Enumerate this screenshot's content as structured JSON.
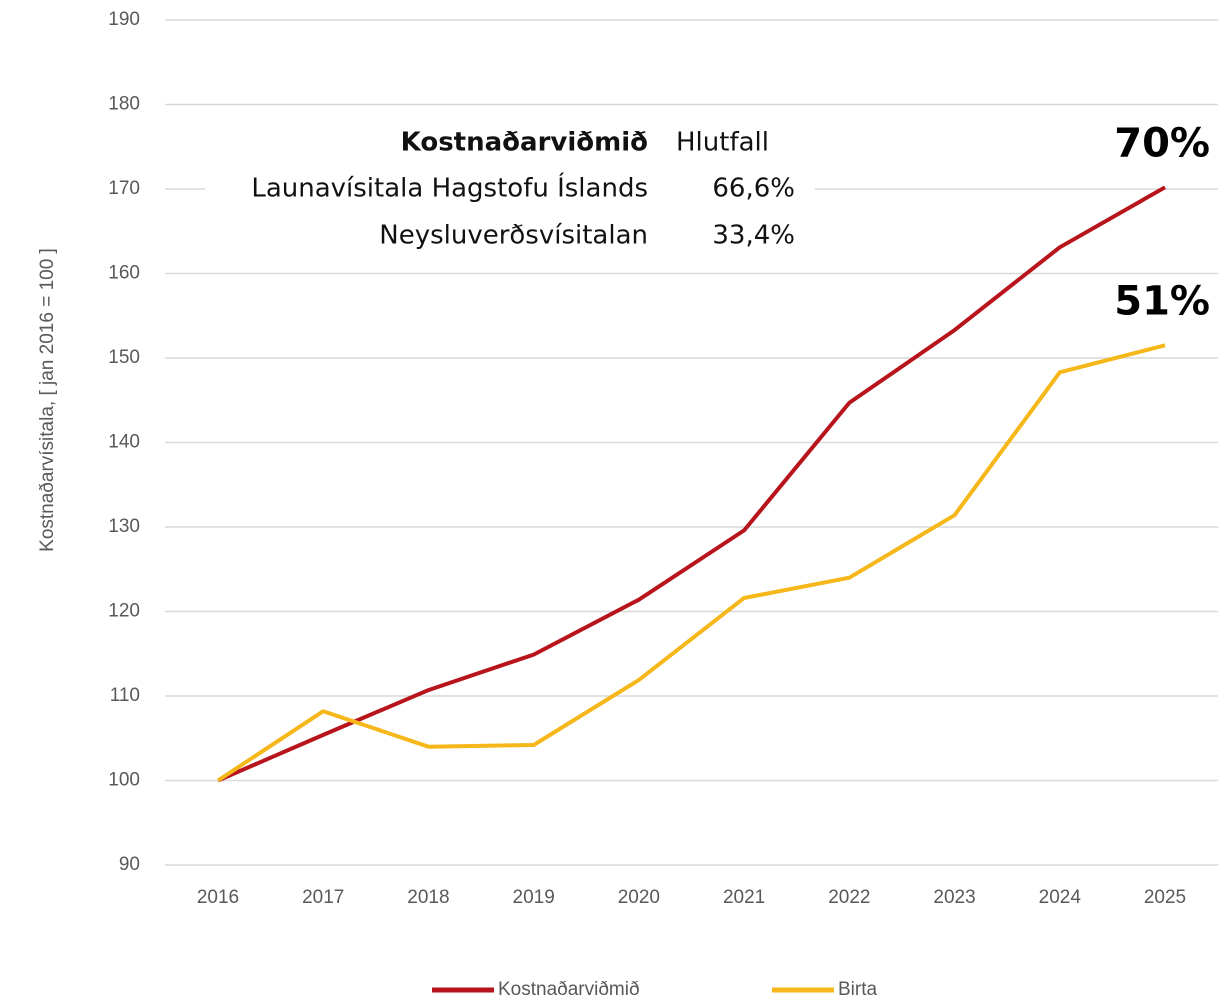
{
  "chart_data": {
    "type": "line",
    "y_label": "Kostnaðarvísitala, [ jan 2016 = 100 ]",
    "categories": [
      "2016",
      "2017",
      "2018",
      "2019",
      "2020",
      "2021",
      "2022",
      "2023",
      "2024",
      "2025"
    ],
    "series": [
      {
        "name": "Kostnaðarviðmið",
        "color": "#b8141c",
        "values": [
          100,
          105.4,
          110.7,
          114.9,
          121.4,
          129.6,
          144.7,
          153.3,
          163.1,
          170.2
        ],
        "end_label": "70%"
      },
      {
        "name": "Birta",
        "color": "#f5b719",
        "values": [
          100,
          108.2,
          104.0,
          104.2,
          111.9,
          121.6,
          124.0,
          131.4,
          148.3,
          151.5
        ],
        "end_label": "51%"
      }
    ],
    "ylim": [
      90,
      190
    ],
    "yticks": [
      90,
      100,
      110,
      120,
      130,
      140,
      150,
      160,
      170,
      180,
      190
    ],
    "grid": true,
    "legend": "bottom",
    "inset_table": {
      "header": [
        "Kostnaðarviðmið",
        "Hlutfall"
      ],
      "rows": [
        [
          "Launavísitala Hagstofu Íslands",
          "66,6%"
        ],
        [
          "Neysluverðsvísitalan",
          "33,4%"
        ]
      ]
    }
  }
}
